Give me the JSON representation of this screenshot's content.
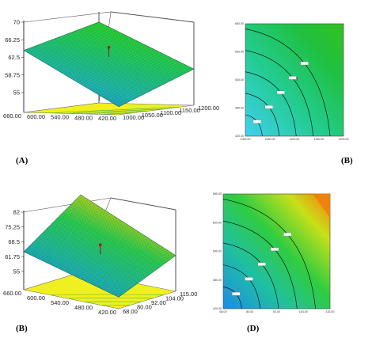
{
  "figure": {
    "panel_labels": [
      "(A)",
      "(B)",
      "(B)",
      "(D)"
    ]
  },
  "chart_data": [
    {
      "panel": "(A)",
      "type": "surface3d",
      "z_ticks": [
        "70",
        "66.25",
        "62.5",
        "58.75",
        "55"
      ],
      "zlim": [
        55,
        70
      ],
      "x_ticks": [
        "1000.00",
        "1050.00",
        "1100.00",
        "1150.00",
        "1200.00"
      ],
      "xlim": [
        1000,
        1200
      ],
      "y_ticks": [
        "420.00",
        "480.00",
        "540.00",
        "600.00",
        "660.00"
      ],
      "ylim": [
        420,
        660
      ],
      "surface": {
        "x": [
          1000,
          1200
        ],
        "y": [
          420,
          660
        ],
        "z_corners": {
          "x_min_y_min": 52.5,
          "x_max_y_min": 58.5,
          "x_min_y_max": 64,
          "x_max_y_max": 68
        }
      },
      "design_point": {
        "x": 1100,
        "y": 540,
        "z": 63.2
      },
      "colors": {
        "low": "#1e78dc",
        "mid": "#22c08a",
        "high": "#2bd020",
        "floor": "#f0f020"
      }
    },
    {
      "panel": "(B)",
      "type": "contour",
      "x_ticks": [
        "1000.00",
        "1050.00",
        "1100.00",
        "1150.00",
        "1200.00"
      ],
      "xlim": [
        1000,
        1200
      ],
      "y_ticks": [
        "420.00",
        "480.00",
        "540.00",
        "600.00",
        "660.00"
      ],
      "ylim": [
        420,
        660
      ],
      "design_point": {
        "x": 1105,
        "y": 545,
        "label": "5"
      },
      "colors": {
        "low": "#40c8f0",
        "high": "#22c040",
        "line": "#000000"
      }
    },
    {
      "panel": "(B)",
      "type": "surface3d",
      "z_ticks": [
        "82",
        "75.25",
        "68.5",
        "61.75",
        "55"
      ],
      "zlim": [
        55,
        82
      ],
      "x_ticks": [
        "68.00",
        "80.00",
        "92.00",
        "104.00",
        "115.00"
      ],
      "xlim": [
        68,
        115
      ],
      "y_ticks": [
        "420.00",
        "480.00",
        "540.00",
        "600.00",
        "660.00"
      ],
      "ylim": [
        420,
        660
      ],
      "surface": {
        "x": [
          68,
          115
        ],
        "y": [
          420,
          660
        ],
        "z_corners": {
          "x_min_y_min": 52,
          "x_max_y_min": 63,
          "x_min_y_max": 64,
          "x_max_y_max": 82
        }
      },
      "design_point": {
        "x": 92,
        "y": 540,
        "z": 66
      },
      "colors": {
        "low": "#1e78dc",
        "mid": "#22c08a",
        "high": "#e06018",
        "floor": "#f0f020"
      }
    },
    {
      "panel": "(D)",
      "type": "contour",
      "x_ticks": [
        "68.00",
        "80.00",
        "92.00",
        "104.00",
        "115.00"
      ],
      "xlim": [
        68,
        115
      ],
      "y_ticks": [
        "420.00",
        "480.00",
        "540.00",
        "600.00",
        "660.00"
      ],
      "ylim": [
        420,
        660
      ],
      "colors": {
        "low": "#1e90e8",
        "mid": "#2cc878",
        "high": "#e0e020",
        "peak": "#f08010",
        "line": "#000000"
      }
    }
  ]
}
